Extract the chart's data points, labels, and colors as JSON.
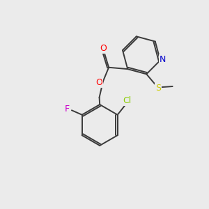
{
  "background_color": "#ebebeb",
  "bond_color": "#3a3a3a",
  "atom_colors": {
    "O": "#ff0000",
    "N": "#0000cc",
    "S": "#cccc00",
    "F": "#cc00cc",
    "Cl": "#88cc00",
    "C": "#3a3a3a"
  },
  "figsize": [
    3.0,
    3.0
  ],
  "dpi": 100
}
